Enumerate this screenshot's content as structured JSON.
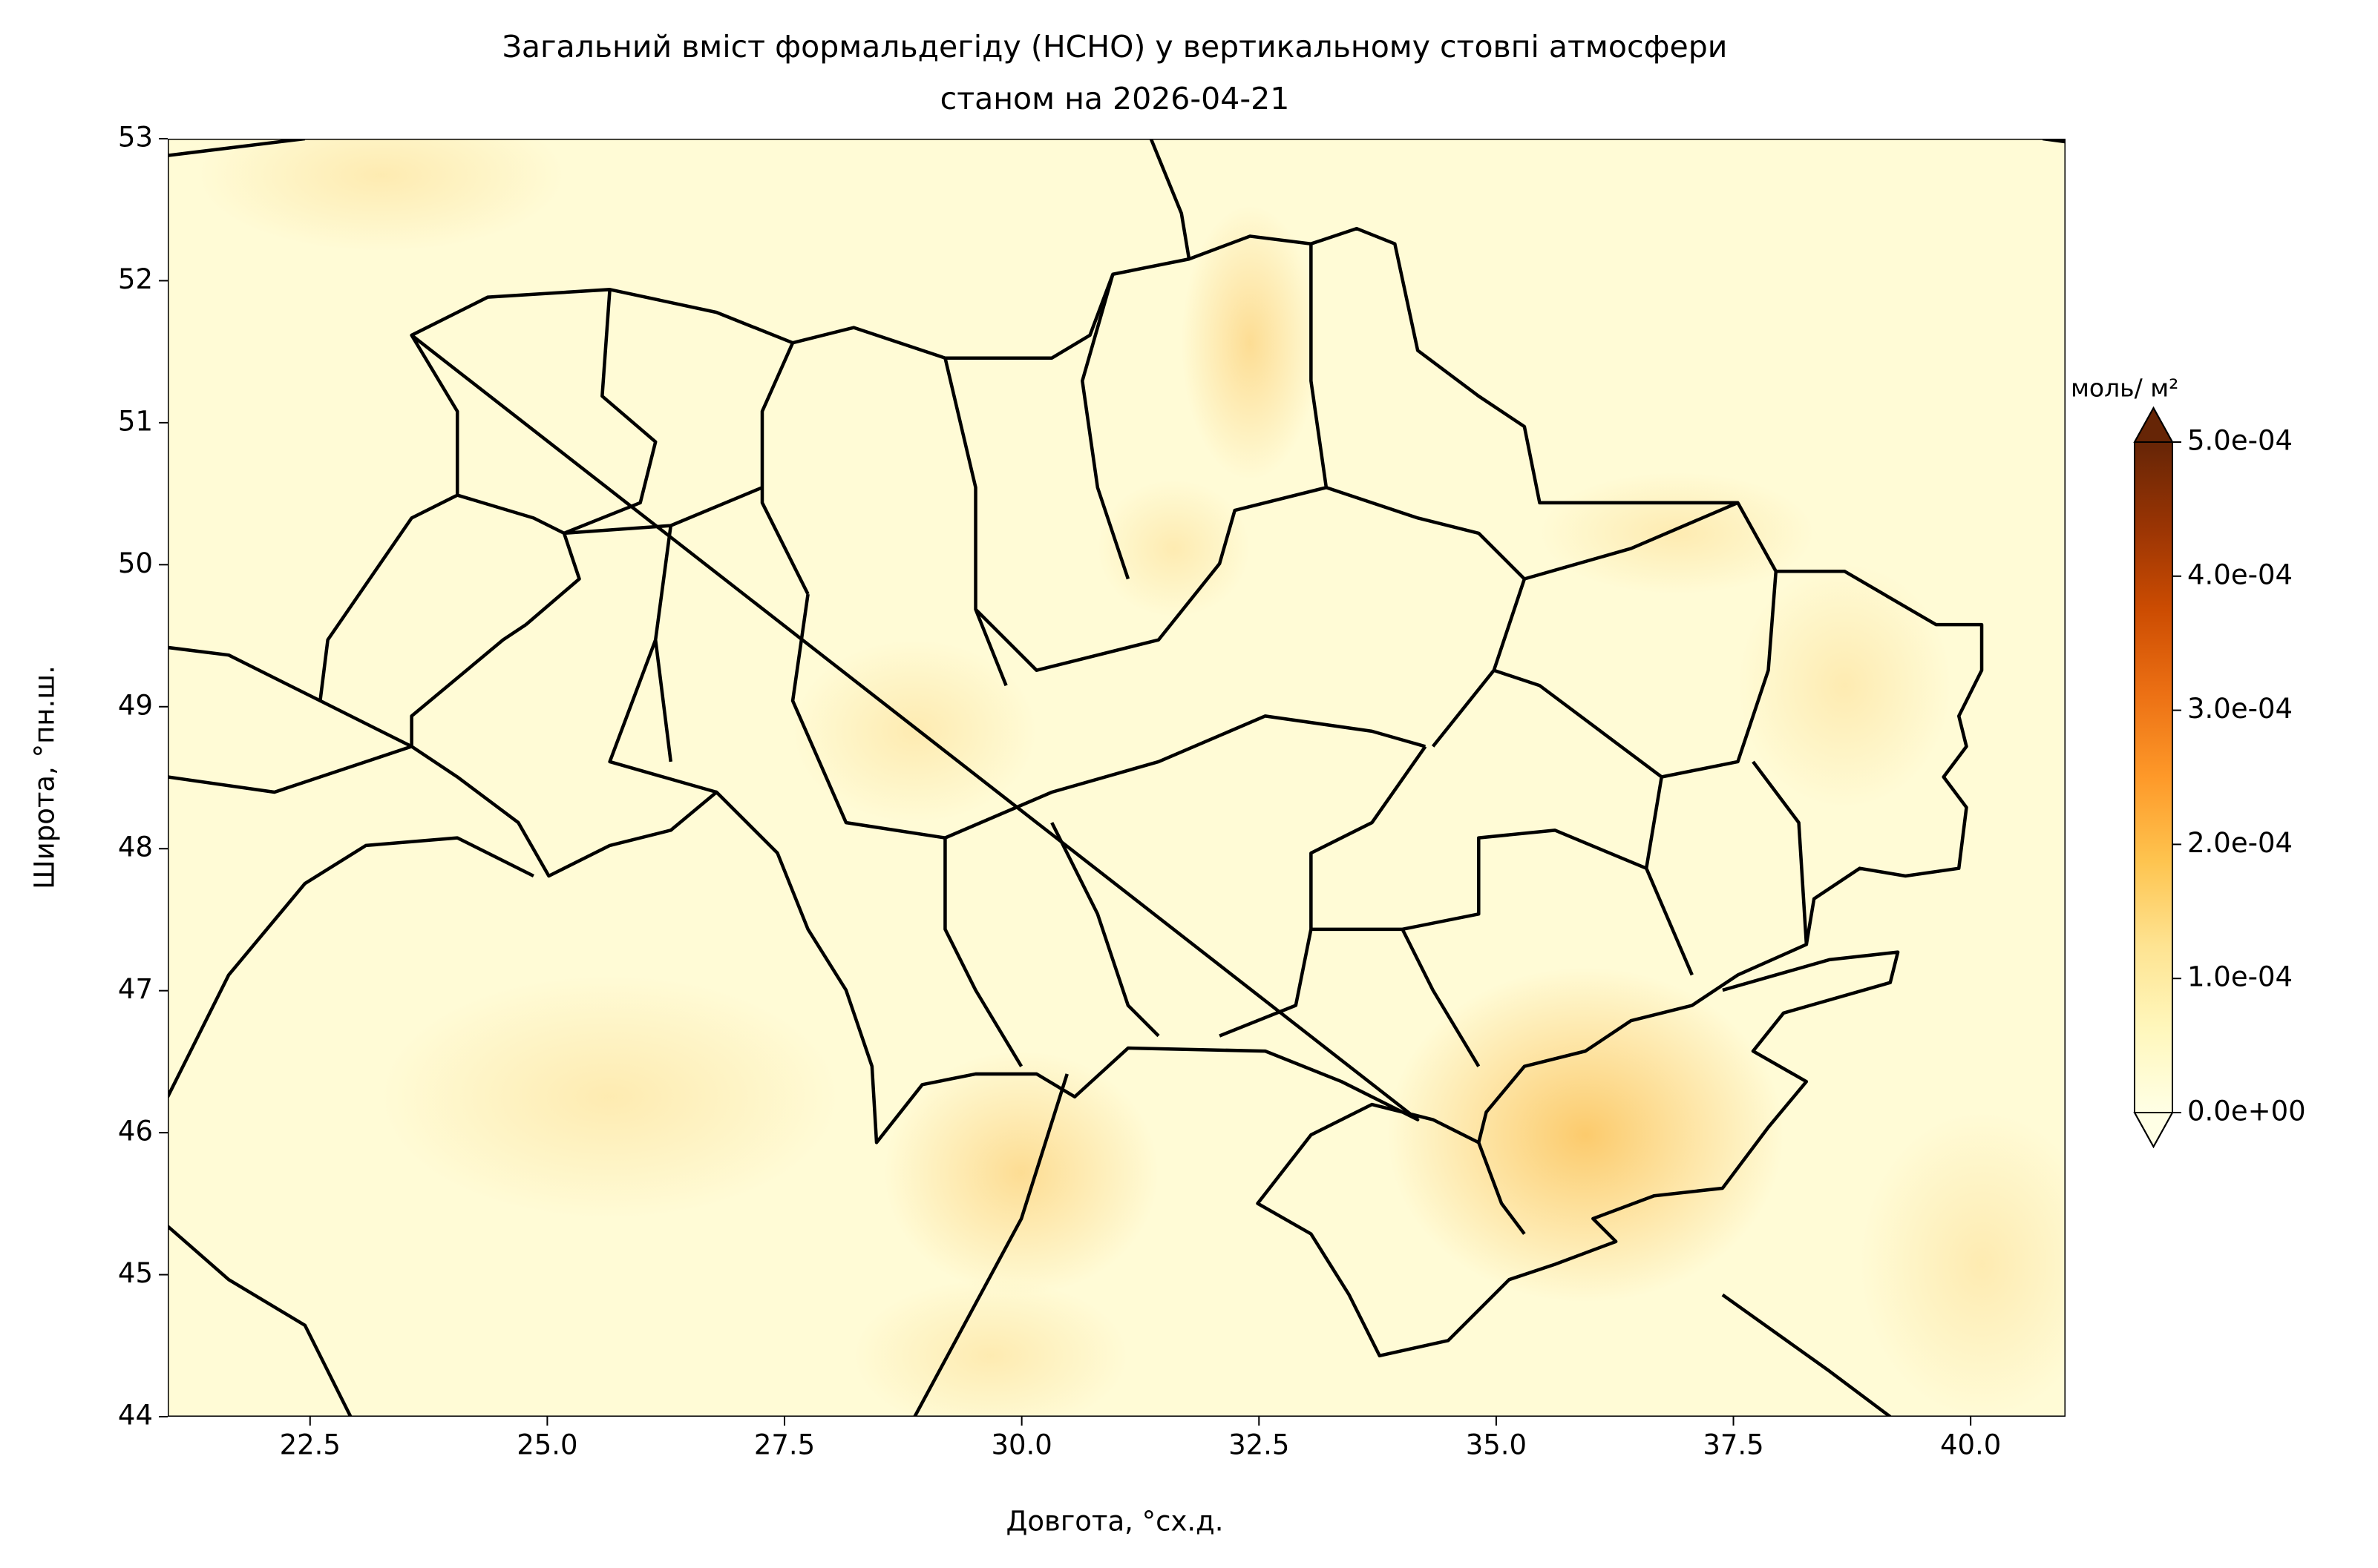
{
  "chart_data": {
    "type": "map",
    "title": "Загальний вміст формальдегіду (HCHO) у вертикальному стовпі атмосфери",
    "subtitle": "станом на 2026-04-21",
    "x_label": "Довгота, °сх.д.",
    "y_label": "Широта,  °пн.ш.",
    "xlim": [
      21,
      41
    ],
    "ylim": [
      44,
      53
    ],
    "xticks": [
      22.5,
      {
        "value": 25,
        "label": "25.0"
      },
      27.5,
      {
        "value": 30,
        "label": "30.0"
      },
      32.5,
      {
        "value": 35,
        "label": "35.0"
      },
      37.5,
      {
        "value": 40,
        "label": "40.0"
      }
    ],
    "yticks": [
      44,
      45,
      46,
      47,
      48,
      49,
      50,
      51,
      52,
      53
    ],
    "colorbar": {
      "label": "моль/ м²",
      "lim": [
        0,
        0.0005
      ],
      "ticks": [
        {
          "value": 0,
          "label": "0.0e+00"
        },
        {
          "value": 0.0001,
          "label": "1.0e-04"
        },
        {
          "value": 0.0002,
          "label": "2.0e-04"
        },
        {
          "value": 0.0003,
          "label": "3.0e-04"
        },
        {
          "value": 0.0004,
          "label": "4.0e-04"
        },
        {
          "value": 0.0005,
          "label": "5.0e-04"
        }
      ],
      "colors": [
        "#ffffe5",
        "#fff7bc",
        "#fee391",
        "#fec44f",
        "#fe9929",
        "#ec7014",
        "#cc4c02",
        "#993404",
        "#662506"
      ]
    }
  }
}
